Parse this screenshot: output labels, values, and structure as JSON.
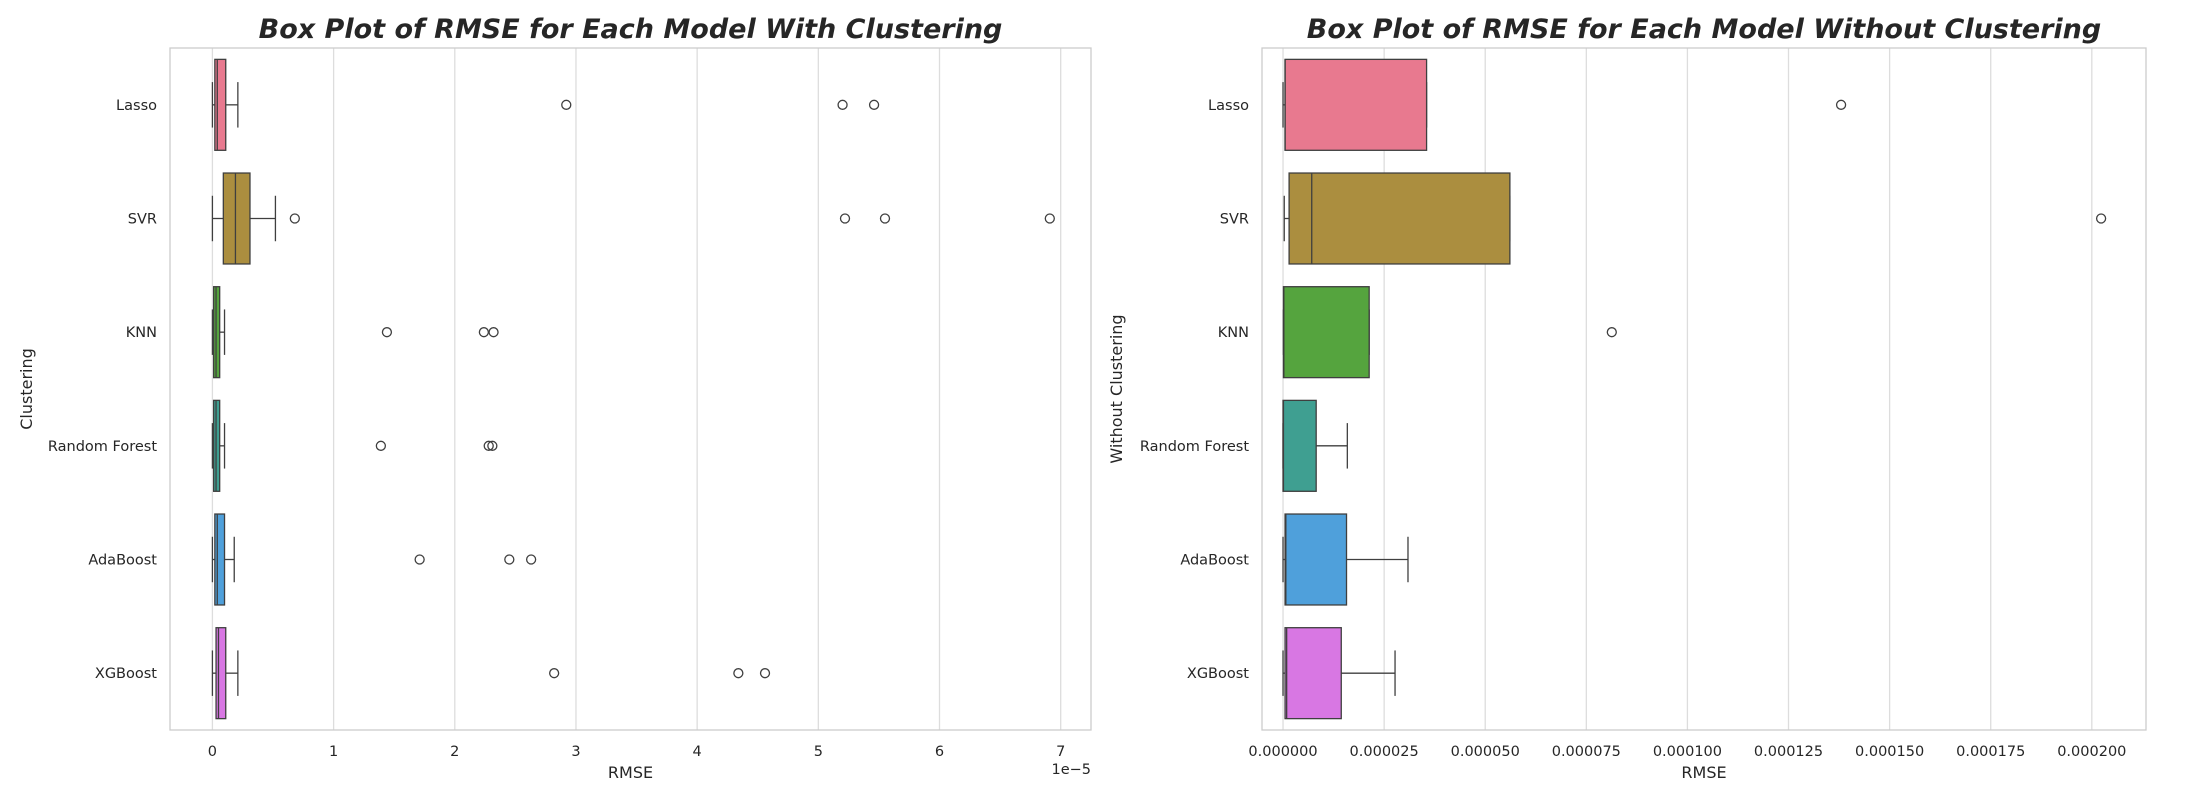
{
  "chart_data": [
    {
      "type": "box",
      "orientation": "horizontal",
      "title": "Box Plot of RMSE for Each Model With Clustering",
      "xlabel": "RMSE",
      "ylabel": "Clustering",
      "x_scale_label": "1e−5",
      "x_ticks": [
        0,
        1,
        2,
        3,
        4,
        5,
        6,
        7
      ],
      "x_tick_labels": [
        "0",
        "1",
        "2",
        "3",
        "4",
        "5",
        "6",
        "7"
      ],
      "xlim": [
        -0.35,
        7.25
      ],
      "grid": "vertical",
      "categories": [
        "Lasso",
        "SVR",
        "KNN",
        "Random Forest",
        "AdaBoost",
        "XGBoost"
      ],
      "colors": [
        "#e8798f",
        "#ab8e3f",
        "#55a43e",
        "#3f9f91",
        "#4fa0db",
        "#d877e3"
      ],
      "series": [
        {
          "category": "Lasso",
          "whisker_low": 0.0,
          "q1": 0.02,
          "median": 0.04,
          "q3": 0.11,
          "whisker_high": 0.21,
          "outliers": [
            2.92,
            5.2,
            5.46
          ]
        },
        {
          "category": "SVR",
          "whisker_low": 0.0,
          "q1": 0.09,
          "median": 0.19,
          "q3": 0.31,
          "whisker_high": 0.52,
          "outliers": [
            0.68,
            5.22,
            5.55,
            6.91
          ]
        },
        {
          "category": "KNN",
          "whisker_low": 0.0,
          "q1": 0.01,
          "median": 0.03,
          "q3": 0.06,
          "whisker_high": 0.1,
          "outliers": [
            1.44,
            2.24,
            2.32
          ]
        },
        {
          "category": "Random Forest",
          "whisker_low": 0.0,
          "q1": 0.01,
          "median": 0.03,
          "q3": 0.06,
          "whisker_high": 0.1,
          "outliers": [
            1.39,
            2.28,
            2.31
          ]
        },
        {
          "category": "AdaBoost",
          "whisker_low": 0.0,
          "q1": 0.02,
          "median": 0.04,
          "q3": 0.1,
          "whisker_high": 0.18,
          "outliers": [
            1.71,
            2.45,
            2.63
          ]
        },
        {
          "category": "XGBoost",
          "whisker_low": 0.0,
          "q1": 0.03,
          "median": 0.05,
          "q3": 0.11,
          "whisker_high": 0.21,
          "outliers": [
            2.82,
            4.34,
            4.56
          ]
        }
      ]
    },
    {
      "type": "box",
      "orientation": "horizontal",
      "title": "Box Plot of RMSE for Each Model Without Clustering",
      "xlabel": "RMSE",
      "ylabel": "Without Clustering",
      "x_ticks": [
        0,
        2.5e-05,
        5e-05,
        7.5e-05,
        0.0001,
        0.000125,
        0.00015,
        0.000175,
        0.0002
      ],
      "x_tick_labels": [
        "0.000000",
        "0.000025",
        "0.000050",
        "0.000075",
        "0.000100",
        "0.000125",
        "0.000150",
        "0.000175",
        "0.000200"
      ],
      "xlim": [
        -5.2e-06,
        0.0002134
      ],
      "grid": "vertical",
      "categories": [
        "Lasso",
        "SVR",
        "KNN",
        "Random Forest",
        "AdaBoost",
        "XGBoost"
      ],
      "colors": [
        "#e8798f",
        "#ab8e3f",
        "#55a43e",
        "#3f9f91",
        "#4fa0db",
        "#d877e3"
      ],
      "series": [
        {
          "category": "Lasso",
          "whisker_low": 0.0,
          "q1": 5e-07,
          "median": 5e-07,
          "q3": 3.55e-05,
          "whisker_high": 3.55e-05,
          "outliers": [
            0.000138
          ]
        },
        {
          "category": "SVR",
          "whisker_low": 3e-07,
          "q1": 1.5e-06,
          "median": 7.1e-06,
          "q3": 5.61e-05,
          "whisker_high": 5.61e-05,
          "outliers": [
            0.0002023
          ]
        },
        {
          "category": "KNN",
          "whisker_low": 1e-07,
          "q1": 1e-07,
          "median": 2e-07,
          "q3": 2.13e-05,
          "whisker_high": 2.13e-05,
          "outliers": [
            8.13e-05
          ]
        },
        {
          "category": "Random Forest",
          "whisker_low": 0.0,
          "q1": 0.0,
          "median": 1e-07,
          "q3": 8.2e-06,
          "whisker_high": 1.59e-05,
          "outliers": []
        },
        {
          "category": "AdaBoost",
          "whisker_low": 0.0,
          "q1": 5e-07,
          "median": 7e-07,
          "q3": 1.57e-05,
          "whisker_high": 3.09e-05,
          "outliers": []
        },
        {
          "category": "XGBoost",
          "whisker_low": 0.0,
          "q1": 5e-07,
          "median": 9e-07,
          "q3": 1.44e-05,
          "whisker_high": 2.77e-05,
          "outliers": []
        }
      ]
    }
  ]
}
